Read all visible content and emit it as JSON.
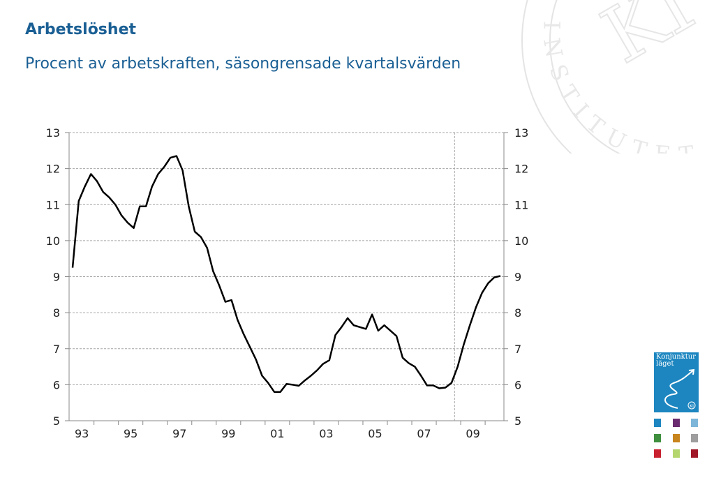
{
  "title": "Arbetslöshet",
  "subtitle": "Procent av arbetskraften, säsongrensade kvartalsvärden",
  "watermark": {
    "text": "INSTITUTET",
    "monogram": "KI"
  },
  "report_cover": {
    "title_line1": "Konjunktur",
    "title_line2": "läget",
    "badge": "KI"
  },
  "report_thumbnails": {
    "colors": [
      "#1d86c0",
      "#6a2c6e",
      "#7eb6d9",
      "#3f8f3f",
      "#c8841d",
      "#9e9e9e",
      "#c8202f",
      "#b5d66f",
      "#a01828"
    ]
  },
  "chart_data": {
    "type": "line",
    "title": "Arbetslöshet",
    "subtitle": "Procent av arbetskraften, säsongrensade kvartalsvärden",
    "xlabel": "",
    "ylabel": "",
    "ylim": [
      5,
      13
    ],
    "yticks": [
      5,
      6,
      7,
      8,
      9,
      10,
      11,
      12,
      13
    ],
    "xtick_labels": [
      "93",
      "95",
      "97",
      "99",
      "01",
      "03",
      "05",
      "07",
      "09"
    ],
    "x_range": [
      "1993Q1",
      "2010Q3"
    ],
    "forecast_marker": "2008Q4",
    "grid": true,
    "line_color": "#000000",
    "series": [
      {
        "name": "",
        "x": [
          "1993Q1",
          "1993Q2",
          "1993Q3",
          "1993Q4",
          "1994Q1",
          "1994Q2",
          "1994Q3",
          "1994Q4",
          "1995Q1",
          "1995Q2",
          "1995Q3",
          "1995Q4",
          "1996Q1",
          "1996Q2",
          "1996Q3",
          "1996Q4",
          "1997Q1",
          "1997Q2",
          "1997Q3",
          "1997Q4",
          "1998Q1",
          "1998Q2",
          "1998Q3",
          "1998Q4",
          "1999Q1",
          "1999Q2",
          "1999Q3",
          "1999Q4",
          "2000Q1",
          "2000Q2",
          "2000Q3",
          "2000Q4",
          "2001Q1",
          "2001Q2",
          "2001Q3",
          "2001Q4",
          "2002Q1",
          "2002Q2",
          "2002Q3",
          "2002Q4",
          "2003Q1",
          "2003Q2",
          "2003Q3",
          "2003Q4",
          "2004Q1",
          "2004Q2",
          "2004Q3",
          "2004Q4",
          "2005Q1",
          "2005Q2",
          "2005Q3",
          "2005Q4",
          "2006Q1",
          "2006Q2",
          "2006Q3",
          "2006Q4",
          "2007Q1",
          "2007Q2",
          "2007Q3",
          "2007Q4",
          "2008Q1",
          "2008Q2",
          "2008Q3",
          "2008Q4",
          "2009Q1",
          "2009Q2",
          "2009Q3",
          "2009Q4",
          "2010Q1",
          "2010Q2",
          "2010Q3"
        ],
        "values": [
          9.25,
          11.1,
          11.5,
          11.85,
          11.65,
          11.35,
          11.2,
          11.0,
          10.7,
          10.5,
          10.35,
          10.95,
          10.95,
          11.5,
          11.85,
          12.05,
          12.3,
          12.35,
          11.95,
          10.95,
          10.25,
          10.1,
          9.8,
          9.15,
          8.75,
          8.3,
          8.35,
          7.8,
          7.4,
          7.05,
          6.7,
          6.25,
          6.05,
          5.8,
          5.8,
          6.02,
          6.0,
          5.97,
          6.12,
          6.25,
          6.4,
          6.58,
          6.68,
          7.38,
          7.6,
          7.85,
          7.65,
          7.6,
          7.55,
          7.95,
          7.5,
          7.65,
          7.5,
          7.35,
          6.75,
          6.6,
          6.5,
          6.25,
          5.98,
          5.98,
          5.9,
          5.92,
          6.05,
          6.5,
          7.12,
          7.65,
          8.15,
          8.55,
          8.82,
          8.98,
          9.02
        ]
      }
    ]
  }
}
